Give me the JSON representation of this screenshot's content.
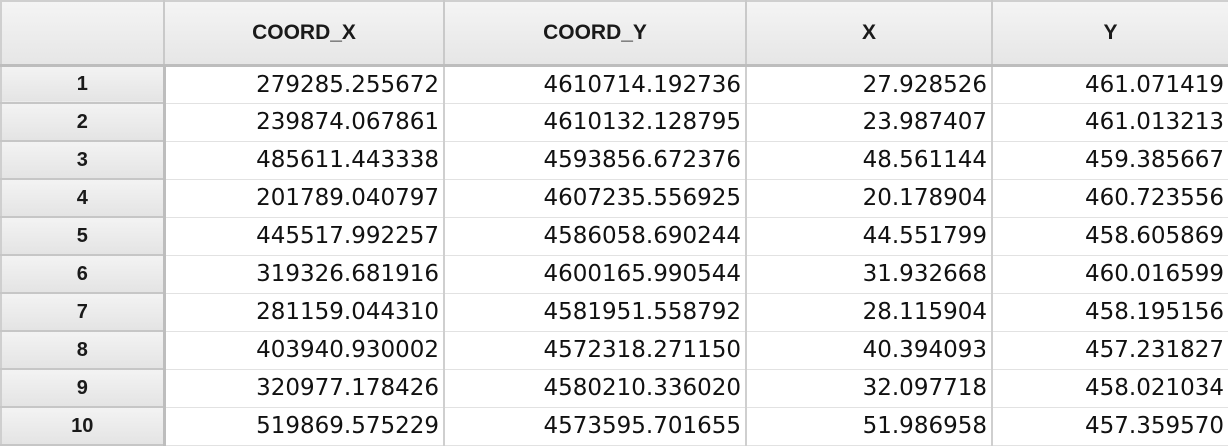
{
  "table": {
    "columns": [
      "",
      "COORD_X",
      "COORD_Y",
      "X",
      "Y"
    ],
    "rows": [
      {
        "index": "1",
        "cells": [
          "279285.255672",
          "4610714.192736",
          "27.928526",
          "461.071419"
        ]
      },
      {
        "index": "2",
        "cells": [
          "239874.067861",
          "4610132.128795",
          "23.987407",
          "461.013213"
        ]
      },
      {
        "index": "3",
        "cells": [
          "485611.443338",
          "4593856.672376",
          "48.561144",
          "459.385667"
        ]
      },
      {
        "index": "4",
        "cells": [
          "201789.040797",
          "4607235.556925",
          "20.178904",
          "460.723556"
        ]
      },
      {
        "index": "5",
        "cells": [
          "445517.992257",
          "4586058.690244",
          "44.551799",
          "458.605869"
        ]
      },
      {
        "index": "6",
        "cells": [
          "319326.681916",
          "4600165.990544",
          "31.932668",
          "460.016599"
        ]
      },
      {
        "index": "7",
        "cells": [
          "281159.044310",
          "4581951.558792",
          "28.115904",
          "458.195156"
        ]
      },
      {
        "index": "8",
        "cells": [
          "403940.930002",
          "4572318.271150",
          "40.394093",
          "457.231827"
        ]
      },
      {
        "index": "9",
        "cells": [
          "320977.178426",
          "4580210.336020",
          "32.097718",
          "458.021034"
        ]
      },
      {
        "index": "10",
        "cells": [
          "519869.575229",
          "4573595.701655",
          "51.986958",
          "457.359570"
        ]
      }
    ]
  }
}
